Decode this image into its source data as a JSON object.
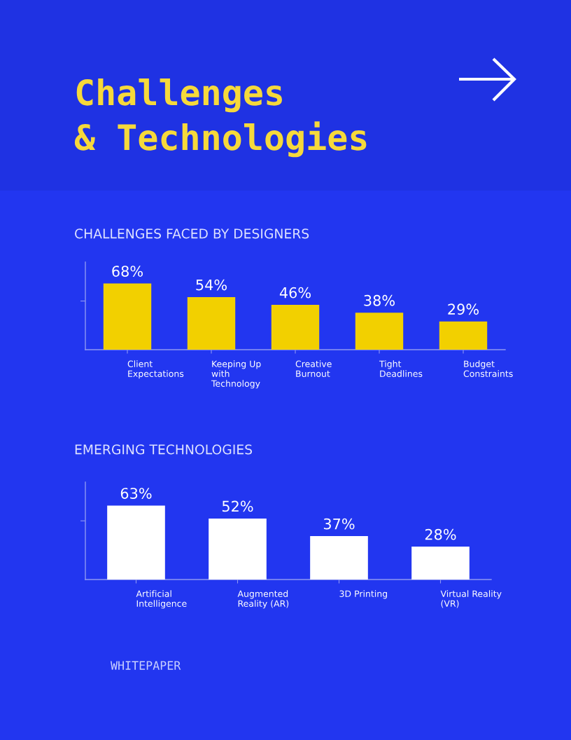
{
  "chart_data": [
    {
      "type": "bar",
      "title": "CHALLENGES FACED BY DESIGNERS",
      "categories": [
        "Client\nExpectations",
        "Keeping Up\nwith\nTechnology",
        "Creative\nBurnout",
        "Tight\nDeadlines",
        "Budget\nConstraints"
      ],
      "values": [
        68,
        54,
        46,
        38,
        29
      ],
      "value_labels": [
        "68%",
        "54%",
        "46%",
        "38%",
        "29%"
      ],
      "color": "#f2d000",
      "ylim": [
        0,
        90
      ],
      "yticks": [
        {
          "value": 50,
          "label": null
        }
      ],
      "tick_labels": "x",
      "annotations": [
        "Challenges\n& Technologies"
      ]
    },
    {
      "type": "bar",
      "title": "EMERGING TECHNOLOGIES",
      "categories": [
        "Artificial\nIntelligence",
        "Augmented\nReality (AR)",
        "3D Printing",
        "Virtual Reality\n(VR)"
      ],
      "values": [
        63,
        52,
        37,
        28
      ],
      "value_labels": [
        "63%",
        "52%",
        "37%",
        "28%"
      ],
      "color": "#ffffff",
      "ylim": [
        0,
        83
      ],
      "yticks": [
        {
          "value": 50,
          "label": null
        }
      ],
      "tick_labels": "x",
      "annotations": [
        "WHITEPAPER"
      ]
    }
  ]
}
